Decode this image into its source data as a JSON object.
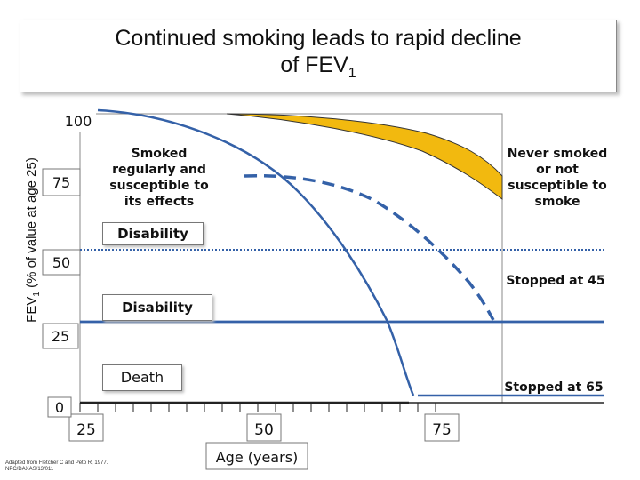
{
  "title": {
    "line1": "Continued smoking leads to rapid decline",
    "line2_main": "of FEV",
    "line2_sub": "1"
  },
  "chart_data": {
    "type": "line",
    "ylabel_main": "FEV",
    "ylabel_sub": "1",
    "ylabel_rest": " (% of value at age 25)",
    "xlabel": "Age (years)",
    "x_ticks": [
      "25",
      "50",
      "75"
    ],
    "y_ticks": [
      "0",
      "25",
      "50",
      "75",
      "100"
    ],
    "xlim": [
      25,
      80
    ],
    "ylim": [
      0,
      100
    ],
    "series": [
      {
        "style": "never-smoked-band",
        "color": "#f2b90f",
        "x": [
          45,
          55,
          65,
          75,
          80
        ],
        "upper": [
          99,
          98,
          94,
          85,
          76
        ],
        "lower": [
          99,
          97,
          91,
          79,
          68
        ]
      },
      {
        "style": "smoked-susceptible",
        "color": "#3461a8",
        "x": [
          25,
          35,
          45,
          55,
          62,
          70
        ],
        "y": [
          100,
          95,
          86,
          71,
          54,
          28
        ]
      },
      {
        "style": "dashed-stopped-45",
        "color": "#3461a8",
        "x": [
          48,
          55,
          62,
          68,
          73,
          78
        ],
        "y": [
          75,
          72,
          64,
          52,
          38,
          26
        ]
      },
      {
        "style": "solid-from-55",
        "color": "#3461a8",
        "x": [
          55,
          62,
          68,
          72,
          75
        ],
        "y": [
          71,
          57,
          40,
          20,
          0
        ]
      },
      {
        "style": "stopped-at-45-line",
        "color": "#3461a8",
        "x": [
          45,
          80
        ],
        "y": [
          25,
          25
        ]
      },
      {
        "style": "stopped-at-65-line",
        "color": "#3461a8",
        "x": [
          65,
          80
        ],
        "y": [
          4,
          4
        ]
      }
    ],
    "reference_lines": [
      {
        "label": "Disability",
        "y": 47,
        "style": "dotted",
        "color": "#3461a8"
      },
      {
        "label": "Disability",
        "y": 25,
        "style": "solid",
        "color": "#3461a8"
      },
      {
        "label": "Death",
        "y": 0,
        "style": "solid",
        "color": "#222222"
      }
    ],
    "annotations": {
      "smoked": "Smoked regularly and susceptible to its effects",
      "never": "Never smoked or not susceptible to smoke",
      "stopped45": "Stopped at 45",
      "stopped65": "Stopped at 65",
      "disability1": "Disability",
      "disability2": "Disability",
      "death": "Death"
    }
  },
  "source": {
    "line1": "Adapted from Fletcher C and Peto R, 1977.",
    "line2": "NPC/DAXAS/13/011"
  }
}
